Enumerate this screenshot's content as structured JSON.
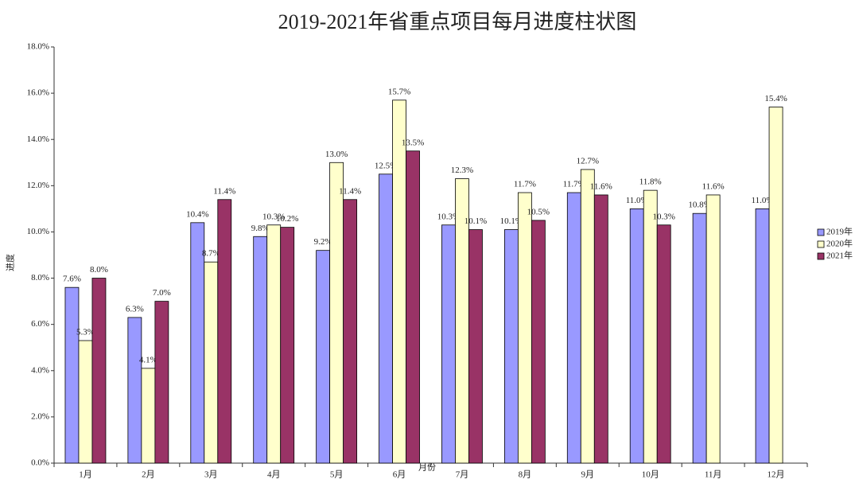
{
  "chart_data": {
    "type": "bar",
    "title": "2019-2021年省重点项目每月进度柱状图",
    "x_label": "月份",
    "y_label": "进度",
    "categories": [
      "1月",
      "2月",
      "3月",
      "4月",
      "5月",
      "6月",
      "7月",
      "8月",
      "9月",
      "10月",
      "11月",
      "12月"
    ],
    "series": [
      {
        "name": "2019年",
        "color": "#9999ff",
        "values": [
          7.6,
          6.3,
          10.4,
          9.8,
          9.2,
          12.5,
          10.3,
          10.1,
          11.7,
          11.0,
          10.8,
          11.0
        ],
        "value_labels": [
          "7.6%",
          "6.3%",
          "10.4%",
          "9.8%",
          "9.2%",
          "12.5%",
          "10.3%",
          "10.1%",
          "11.7%",
          "11.0%",
          "10.8%",
          "11.0%"
        ]
      },
      {
        "name": "2020年",
        "color": "#ffffcc",
        "values": [
          5.3,
          4.1,
          8.7,
          10.3,
          13.0,
          15.7,
          12.3,
          11.7,
          12.7,
          11.8,
          11.6,
          15.4
        ],
        "value_labels": [
          "5.3%",
          "4.1%",
          "8.7%",
          "10.3%",
          "13.0%",
          "15.7%",
          "12.3%",
          "11.7%",
          "12.7%",
          "11.8%",
          "11.6%",
          "15.4%"
        ]
      },
      {
        "name": "2021年",
        "color": "#993366",
        "values": [
          8.0,
          7.0,
          11.4,
          10.2,
          11.4,
          13.5,
          10.1,
          10.5,
          11.6,
          10.3,
          null,
          null
        ],
        "value_labels": [
          "8.0%",
          "7.0%",
          "11.4%",
          "10.2%",
          "11.4%",
          "13.5%",
          "10.1%",
          "10.5%",
          "11.6%",
          "10.3%",
          null,
          null
        ]
      }
    ],
    "ylim": [
      0,
      18
    ],
    "yticks": [
      {
        "value": 0,
        "label": "0.0%"
      },
      {
        "value": 2,
        "label": "2.0%"
      },
      {
        "value": 4,
        "label": "4.0%"
      },
      {
        "value": 6,
        "label": "6.0%"
      },
      {
        "value": 8,
        "label": "8.0%"
      },
      {
        "value": 10,
        "label": "10.0%"
      },
      {
        "value": 12,
        "label": "12.0%"
      },
      {
        "value": 14,
        "label": "14.0%"
      },
      {
        "value": 16,
        "label": "16.0%"
      },
      {
        "value": 18,
        "label": "18.0%"
      }
    ],
    "grid": false,
    "legend": "right"
  }
}
